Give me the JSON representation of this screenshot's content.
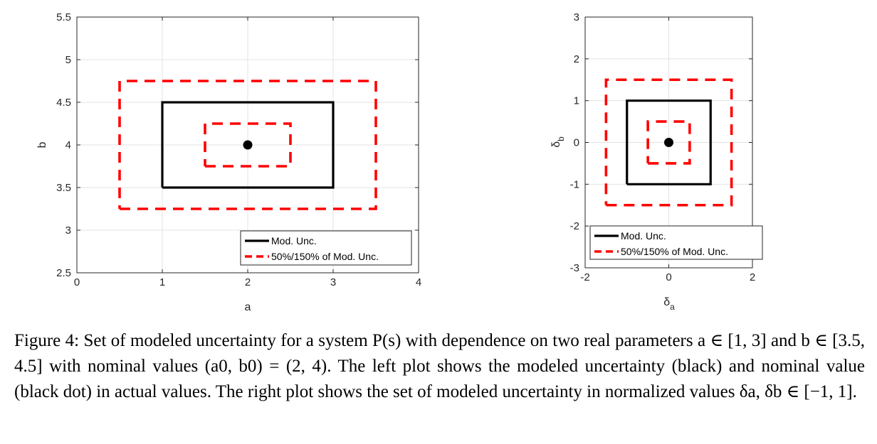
{
  "chart_data": [
    {
      "type": "line",
      "xlabel": "a",
      "ylabel": "b",
      "xlim": [
        0,
        4
      ],
      "ylim": [
        2.5,
        5.5
      ],
      "xticks": [
        "0",
        "1",
        "2",
        "3",
        "4"
      ],
      "yticks": [
        "2.5",
        "3",
        "3.5",
        "4",
        "4.5",
        "5",
        "5.5"
      ],
      "grid": true,
      "legend_position": "bottom-right",
      "series": [
        {
          "name": "Mod. Unc.",
          "style": "solid",
          "color": "#000000",
          "x": [
            1,
            3,
            3,
            1,
            1
          ],
          "y": [
            3.5,
            3.5,
            4.5,
            4.5,
            3.5
          ]
        },
        {
          "name": "50%/150% of Mod. Unc.",
          "style": "dashed",
          "color": "#ff0000",
          "x": [
            1.5,
            2.5,
            2.5,
            1.5,
            1.5
          ],
          "y": [
            3.75,
            3.75,
            4.25,
            4.25,
            3.75
          ]
        },
        {
          "name": "",
          "style": "dashed",
          "color": "#ff0000",
          "x": [
            0.5,
            3.5,
            3.5,
            0.5,
            0.5
          ],
          "y": [
            3.25,
            3.25,
            4.75,
            4.75,
            3.25
          ]
        }
      ],
      "points": [
        {
          "x": 2,
          "y": 4,
          "color": "#000000"
        }
      ]
    },
    {
      "type": "line",
      "xlabel": "δa",
      "ylabel": "δb",
      "xlabel_main": "δ",
      "xlabel_sub": "a",
      "ylabel_main": "δ",
      "ylabel_sub": "b",
      "xlim": [
        -2,
        2
      ],
      "ylim": [
        -3,
        3
      ],
      "xticks": [
        "-2",
        "0",
        "2"
      ],
      "yticks": [
        "-3",
        "-2",
        "-1",
        "0",
        "1",
        "2",
        "3"
      ],
      "grid": true,
      "legend_position": "bottom",
      "series": [
        {
          "name": "Mod. Unc.",
          "style": "solid",
          "color": "#000000",
          "x": [
            -1,
            1,
            1,
            -1,
            -1
          ],
          "y": [
            -1,
            -1,
            1,
            1,
            -1
          ]
        },
        {
          "name": "50%/150% of Mod. Unc.",
          "style": "dashed",
          "color": "#ff0000",
          "x": [
            -0.5,
            0.5,
            0.5,
            -0.5,
            -0.5
          ],
          "y": [
            -0.5,
            -0.5,
            0.5,
            0.5,
            -0.5
          ]
        },
        {
          "name": "",
          "style": "dashed",
          "color": "#ff0000",
          "x": [
            -1.5,
            1.5,
            1.5,
            -1.5,
            -1.5
          ],
          "y": [
            -1.5,
            -1.5,
            1.5,
            1.5,
            -1.5
          ]
        }
      ],
      "points": [
        {
          "x": 0,
          "y": 0,
          "color": "#000000"
        }
      ]
    }
  ],
  "caption": {
    "label": "Figure 4:",
    "text": "Set of modeled uncertainty for a system P(s) with dependence on two real parameters a ∈ [1, 3] and b ∈ [3.5, 4.5] with nominal values (a0, b0) = (2, 4). The left plot shows the modeled uncertainty (black) and nominal value (black dot) in actual values. The right plot shows the set of modeled uncertainty in normalized values δa, δb ∈ [−1, 1]."
  }
}
